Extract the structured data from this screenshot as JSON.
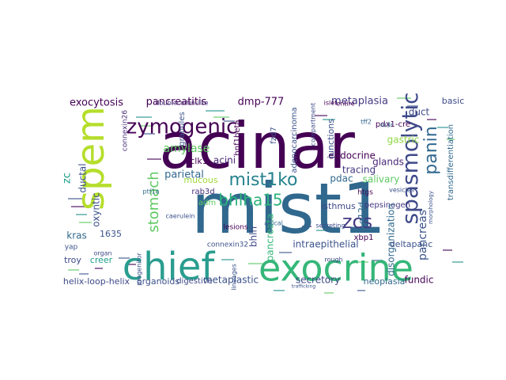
{
  "figure": {
    "type": "word-cloud",
    "background": "#ffffff",
    "colormap": "viridis"
  },
  "palette": {
    "dark_purple": "#440154",
    "indigo": "#472c7a",
    "slate_blue": "#3b528b",
    "steel_blue": "#31688e",
    "teal": "#21918c",
    "green": "#35b779",
    "lime": "#8fd744",
    "yellow_green": "#b5de2b"
  },
  "words": [
    {
      "text": "acinar",
      "color": "#440154"
    },
    {
      "text": "mist1",
      "color": "#31688e"
    },
    {
      "text": "chief",
      "color": "#2a9d8f"
    },
    {
      "text": "exocrine",
      "color": "#35b779"
    },
    {
      "text": "spem",
      "color": "#b5de2b"
    },
    {
      "text": "spasmolytic",
      "color": "#3e4a89"
    },
    {
      "text": "zymogenic",
      "color": "#440154"
    },
    {
      "text": "mist1ko",
      "color": "#26828e"
    },
    {
      "text": "panin",
      "color": "#31688e"
    },
    {
      "text": "bhlha15",
      "color": "#2db27d"
    },
    {
      "text": "zcs",
      "color": "#443983"
    },
    {
      "text": "stomach",
      "color": "#5ec962"
    },
    {
      "text": "pancreas",
      "color": "#3b528b"
    },
    {
      "text": "pancreatitis",
      "color": "#440154"
    },
    {
      "text": "exocytosis",
      "color": "#440154"
    },
    {
      "text": "dmp-777",
      "color": "#440154"
    },
    {
      "text": "metaplasia",
      "color": "#443983"
    },
    {
      "text": "amylase",
      "color": "#5ec962"
    },
    {
      "text": "parietal",
      "color": "#31688e"
    },
    {
      "text": "acini",
      "color": "#482878"
    },
    {
      "text": "ductal",
      "color": "#3b528b"
    },
    {
      "text": "dclk1",
      "color": "#440154"
    },
    {
      "text": "mucous",
      "color": "#a0da39"
    },
    {
      "text": "zc",
      "color": "#1f9e89"
    },
    {
      "text": "oxyntic",
      "color": "#3b528b"
    },
    {
      "text": "kras",
      "color": "#31688e"
    },
    {
      "text": "1635",
      "color": "#3b528b"
    },
    {
      "text": "bhlh",
      "color": "#3e4a89"
    },
    {
      "text": "pancreata",
      "color": "#35b779"
    },
    {
      "text": "rab3d",
      "color": "#472c7a"
    },
    {
      "text": "adm",
      "color": "#5ec962"
    },
    {
      "text": "pdac",
      "color": "#31688e"
    },
    {
      "text": "isthmus",
      "color": "#3e4a89"
    },
    {
      "text": "g12d",
      "color": "#31688e"
    },
    {
      "text": "salivary",
      "color": "#5ec962"
    },
    {
      "text": "tracing",
      "color": "#443983"
    },
    {
      "text": "glands",
      "color": "#482878"
    },
    {
      "text": "endocrine",
      "color": "#440154"
    },
    {
      "text": "gastric",
      "color": "#8fd744"
    },
    {
      "text": "duct",
      "color": "#3e4a89"
    },
    {
      "text": "basic",
      "color": "#3e4a89"
    },
    {
      "text": "transdifferentiation",
      "color": "#31688e"
    },
    {
      "text": "pdx1-cre",
      "color": "#440154"
    },
    {
      "text": "junctions",
      "color": "#3b528b"
    },
    {
      "text": "adenocarcinoma",
      "color": "#3b528b"
    },
    {
      "text": "fzd7",
      "color": "#3b528b"
    },
    {
      "text": "hnf1beta",
      "color": "#440154"
    },
    {
      "text": "granules",
      "color": "#3b528b"
    },
    {
      "text": "connexin26",
      "color": "#472c7a"
    },
    {
      "text": "doublecortin-like",
      "color": "#472c7a"
    },
    {
      "text": "pepsinogen",
      "color": "#443983"
    },
    {
      "text": "disorganization",
      "color": "#31688e"
    },
    {
      "text": "deltapanc",
      "color": "#3b528b"
    },
    {
      "text": "intraepithelial",
      "color": "#3b528b"
    },
    {
      "text": "xbp1",
      "color": "#440154"
    },
    {
      "text": "metaplastic",
      "color": "#3b528b"
    },
    {
      "text": "secretory",
      "color": "#3e4a89"
    },
    {
      "text": "fundic",
      "color": "#440154"
    },
    {
      "text": "neoplasia",
      "color": "#31688e"
    },
    {
      "text": "helix-loop-helix",
      "color": "#3e4a89"
    },
    {
      "text": "organoids",
      "color": "#3b528b"
    },
    {
      "text": "digestive",
      "color": "#3e4a89"
    },
    {
      "text": "creer",
      "color": "#1f9e89"
    },
    {
      "text": "troy",
      "color": "#3e4a89"
    },
    {
      "text": "yap",
      "color": "#3b528b"
    },
    {
      "text": "connexin32",
      "color": "#3b528b"
    },
    {
      "text": "lesions",
      "color": "#440154"
    },
    {
      "text": "caerulein",
      "color": "#3b528b"
    },
    {
      "text": "m3r",
      "color": "#31688e"
    },
    {
      "text": "tff2",
      "color": "#31688e"
    },
    {
      "text": "compartment",
      "color": "#3e4a89"
    },
    {
      "text": "islet",
      "color": "#440154"
    },
    {
      "text": "entire",
      "color": "#440154"
    },
    {
      "text": "rough",
      "color": "#3e4a89"
    },
    {
      "text": "htgs",
      "color": "#440154"
    },
    {
      "text": "vesicles",
      "color": "#3b528b"
    },
    {
      "text": "ptf1a",
      "color": "#31688e"
    },
    {
      "text": "organ",
      "color": "#3e4a89"
    },
    {
      "text": "progenitor",
      "color": "#3b528b"
    },
    {
      "text": "apical",
      "color": "#31688e"
    },
    {
      "text": "secreting",
      "color": "#3e4a89"
    },
    {
      "text": "lineages",
      "color": "#3b528b"
    },
    {
      "text": "morphology",
      "color": "#3b528b"
    },
    {
      "text": "trafficking",
      "color": "#3b528b"
    }
  ]
}
